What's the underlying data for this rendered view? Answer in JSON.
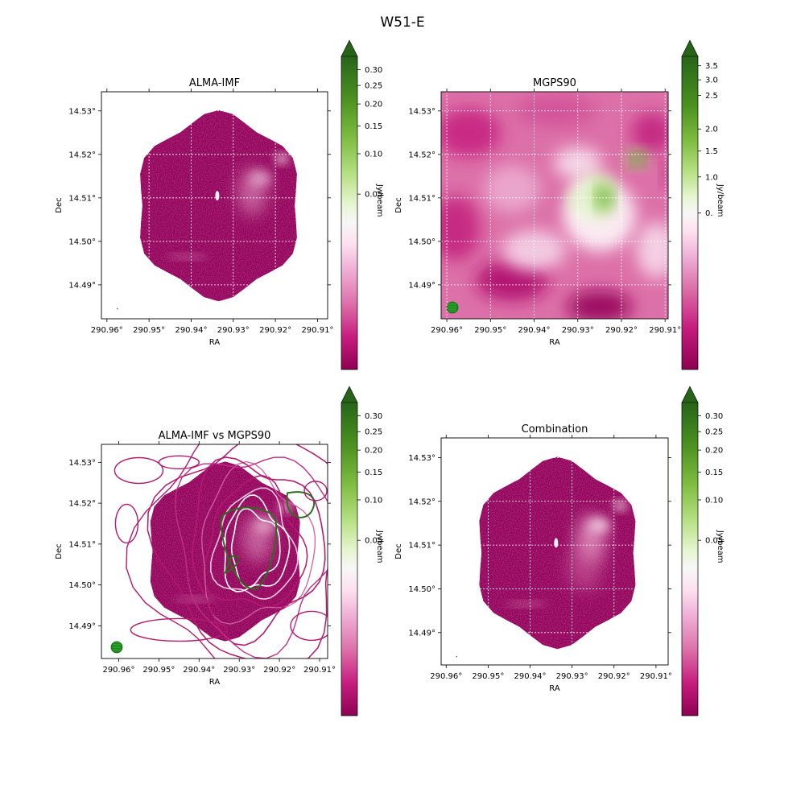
{
  "figure": {
    "title": "W51-E"
  },
  "colors": {
    "cmap_stops": [
      "#8e0152",
      "#c51b7d",
      "#de77ae",
      "#f1b6da",
      "#fde0ef",
      "#f7f7f7",
      "#e6f5d0",
      "#b8e186",
      "#7fbc41",
      "#4d9221",
      "#276419"
    ],
    "grid": "#ffffff",
    "beam": "#1a8c1a",
    "contour_magenta": "#b5196e",
    "contour_green": "#2f6b1f"
  },
  "chart_data": [
    {
      "type": "heatmap",
      "title": "ALMA-IMF",
      "xlabel": "RA",
      "ylabel": "Dec",
      "x_ticks": [
        "290.96°",
        "290.95°",
        "290.94°",
        "290.93°",
        "290.92°",
        "290.91°"
      ],
      "y_ticks": [
        "14.53°",
        "14.52°",
        "14.51°",
        "14.50°",
        "14.49°"
      ],
      "colorbar": {
        "label": "Jy/beam",
        "ticks": [
          "0.30",
          "0.25",
          "0.20",
          "0.15",
          "0.10",
          "0.05"
        ],
        "extend": "max"
      },
      "grid": true,
      "footprint": "hexagonal mosaic",
      "beam_marker": false
    },
    {
      "type": "heatmap",
      "title": "MGPS90",
      "xlabel": "RA",
      "ylabel": "Dec",
      "x_ticks": [
        "290.96°",
        "290.95°",
        "290.94°",
        "290.93°",
        "290.92°",
        "290.91°"
      ],
      "y_ticks": [
        "14.53°",
        "14.52°",
        "14.51°",
        "14.50°",
        "14.49°"
      ],
      "colorbar": {
        "label": "Jy/beam",
        "ticks": [
          "3.5",
          "3.0",
          "2.5",
          "2.0",
          "1.5",
          "1.0",
          "0."
        ],
        "extend": "max"
      },
      "grid": true,
      "beam_marker": true
    },
    {
      "type": "heatmap",
      "title": "ALMA-IMF vs MGPS90",
      "xlabel": "RA",
      "ylabel": "Dec",
      "x_ticks": [
        "290.96°",
        "290.95°",
        "290.94°",
        "290.93°",
        "290.92°",
        "290.91°"
      ],
      "y_ticks": [
        "14.53°",
        "14.52°",
        "14.51°",
        "14.50°",
        "14.49°"
      ],
      "colorbar": {
        "label": "Jy/beam",
        "ticks": [
          "0.30",
          "0.25",
          "0.20",
          "0.15",
          "0.10",
          "0.05"
        ],
        "extend": "max"
      },
      "grid": false,
      "contours": true,
      "beam_marker": true
    },
    {
      "type": "heatmap",
      "title": "Combination",
      "xlabel": "RA",
      "ylabel": "Dec",
      "x_ticks": [
        "290.96°",
        "290.95°",
        "290.94°",
        "290.93°",
        "290.92°",
        "290.91°"
      ],
      "y_ticks": [
        "14.53°",
        "14.52°",
        "14.51°",
        "14.50°",
        "14.49°"
      ],
      "colorbar": {
        "label": "Jy/beam",
        "ticks": [
          "0.30",
          "0.25",
          "0.20",
          "0.15",
          "0.10",
          "0.05"
        ],
        "extend": "max"
      },
      "grid": true,
      "footprint": "hexagonal mosaic",
      "beam_marker": false
    }
  ]
}
